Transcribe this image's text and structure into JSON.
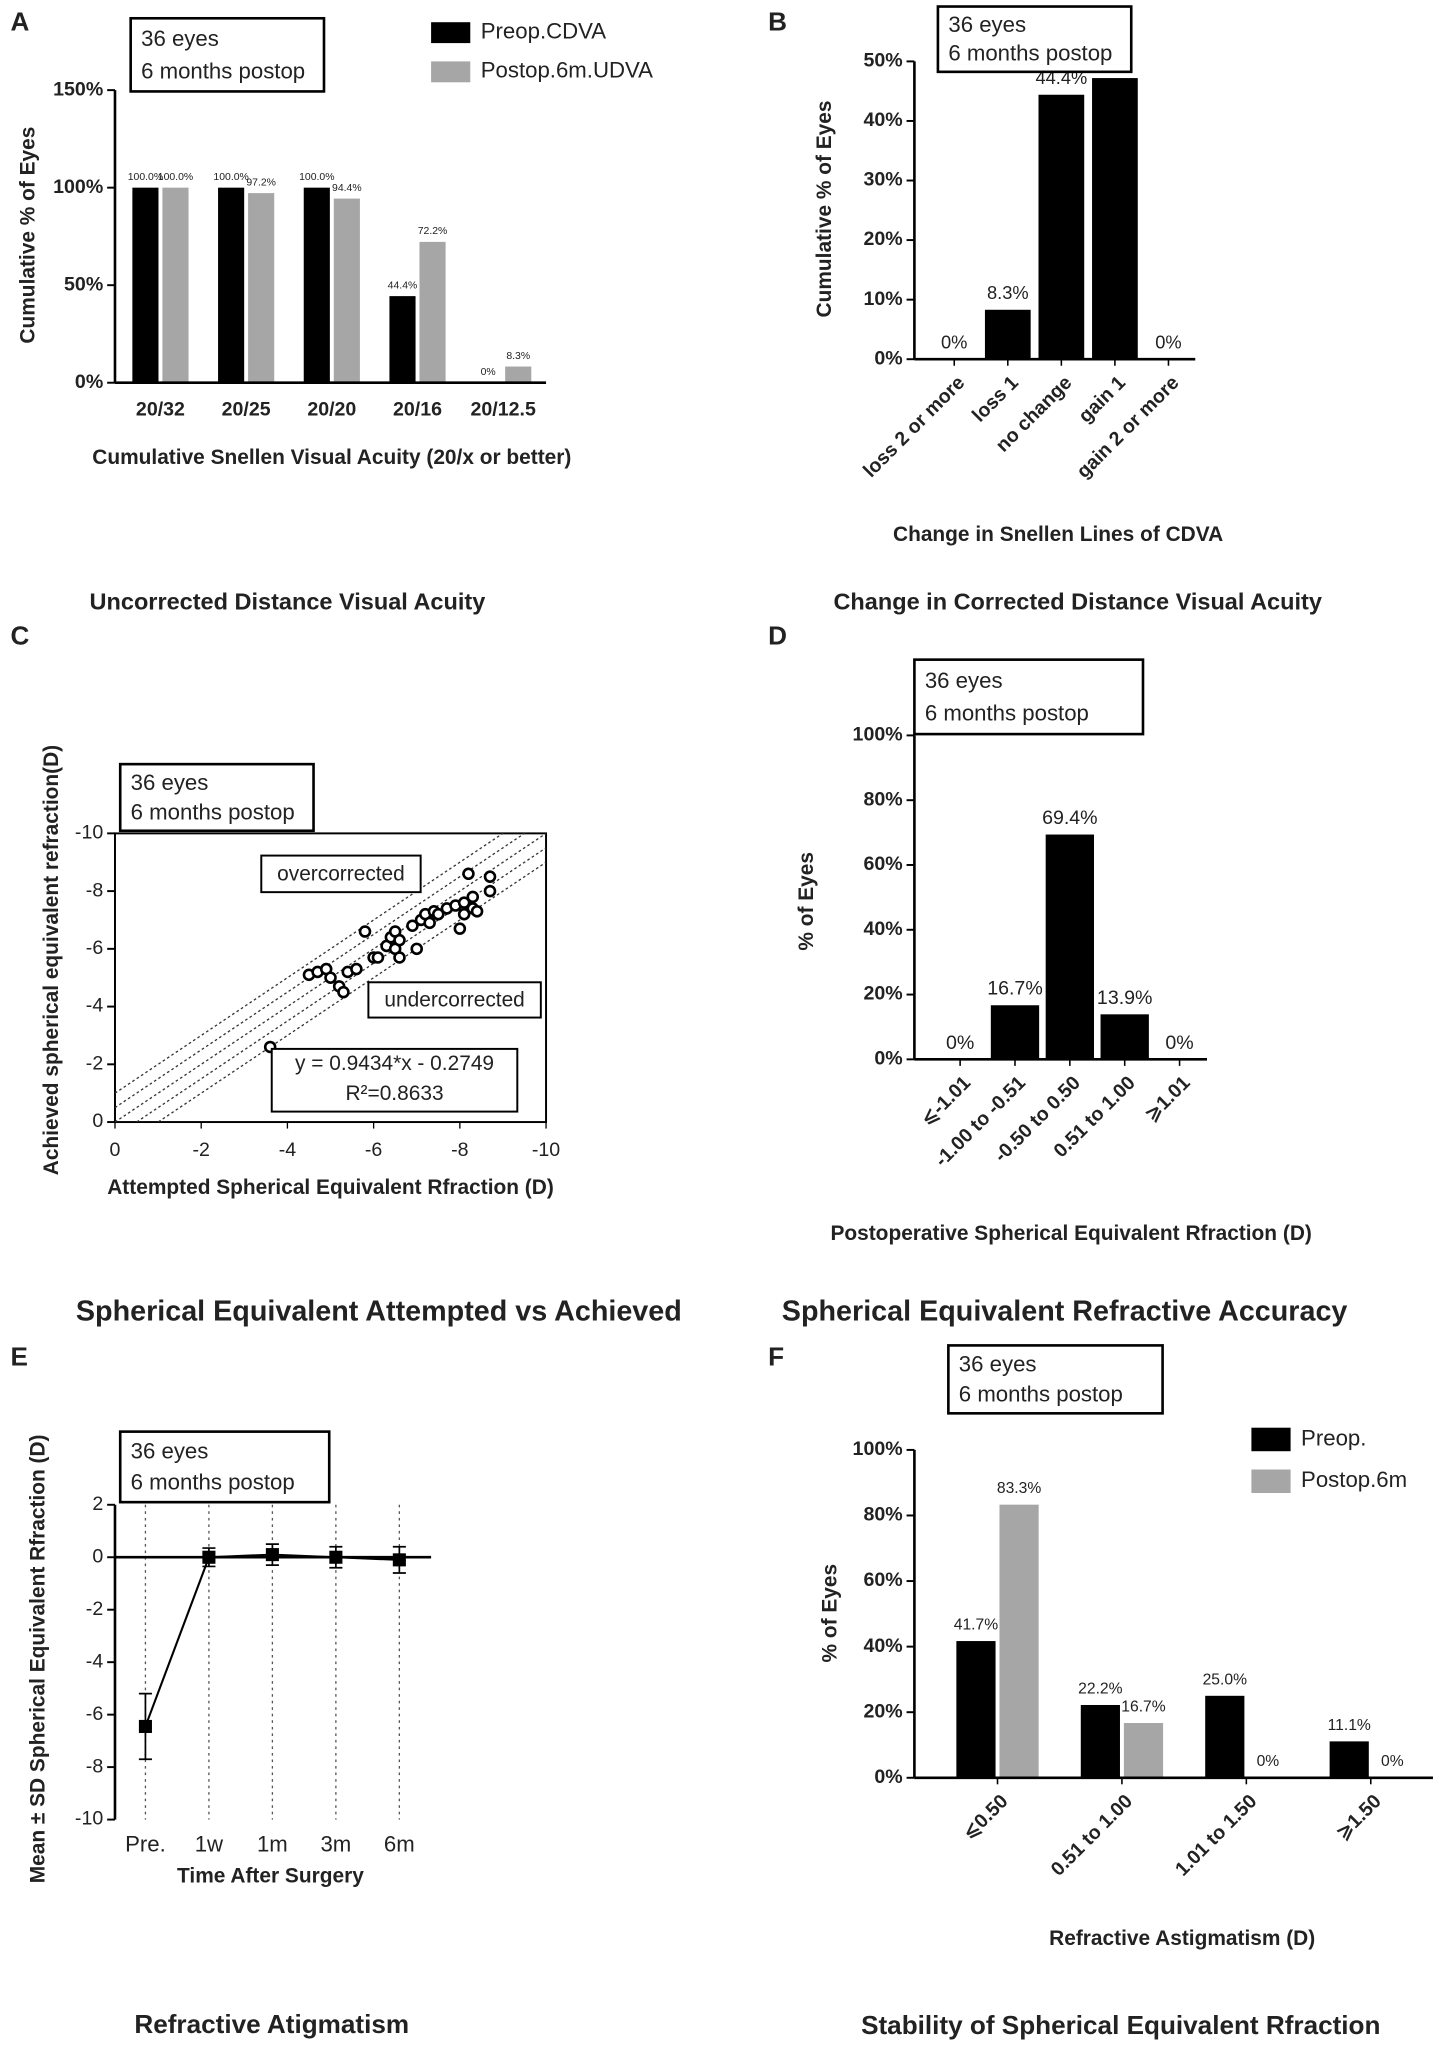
{
  "chart_data": [
    {
      "type": "bar",
      "panel": "A",
      "caption": "Uncorrected Distance Visual Acuity",
      "annotation": [
        "36 eyes",
        "6 months postop"
      ],
      "x_label": "Cumulative Snellen Visual Acuity (20/x or better)",
      "y_label": "Cumulative % of Eyes",
      "categories": [
        "20/32",
        "20/25",
        "20/20",
        "20/16",
        "20/12.5"
      ],
      "series": [
        {
          "name": "Preop.CDVA",
          "color": "#000000",
          "values": [
            100,
            100,
            100,
            44.4,
            0
          ],
          "value_labels": [
            "100.0%",
            "100.0%",
            "100.0%",
            "44.4%",
            "0%"
          ]
        },
        {
          "name": "Postop.6m.UDVA",
          "color": "#a6a6a6",
          "values": [
            100,
            97.2,
            94.4,
            72.2,
            8.3
          ],
          "value_labels": [
            "100.0%",
            "97.2%",
            "94.4%",
            "72.2%",
            "8.3%"
          ]
        }
      ],
      "ylim": [
        0,
        150
      ],
      "yticks": [
        {
          "value": 0,
          "label": "0%"
        },
        {
          "value": 50,
          "label": "50%"
        },
        {
          "value": 100,
          "label": "100%"
        },
        {
          "value": 150,
          "label": "150%"
        }
      ],
      "legend": "upper right"
    },
    {
      "type": "bar",
      "panel": "B",
      "caption": "Change in Corrected Distance Visual Acuity",
      "annotation": [
        "36 eyes",
        "6 months postop"
      ],
      "x_label": "Change in Snellen Lines of CDVA",
      "y_label": "Cumulative % of Eyes",
      "categories": [
        "loss 2 or more",
        "loss 1",
        "no change",
        "gain 1",
        "gain 2 or more"
      ],
      "values": [
        0,
        8.3,
        44.4,
        47.2,
        0
      ],
      "value_labels": [
        "0%",
        "8.3%",
        "44.4%",
        null,
        "0%"
      ],
      "color": "#000000",
      "ylim": [
        0,
        50
      ],
      "yticks": [
        {
          "value": 0,
          "label": "0%"
        },
        {
          "value": 10,
          "label": "10%"
        },
        {
          "value": 20,
          "label": "20%"
        },
        {
          "value": 30,
          "label": "30%"
        },
        {
          "value": 40,
          "label": "40%"
        },
        {
          "value": 50,
          "label": "50%"
        }
      ]
    },
    {
      "type": "scatter",
      "panel": "C",
      "caption": "Spherical Equivalent Attempted vs Achieved",
      "annotation": [
        "36 eyes",
        "6 months postop"
      ],
      "x_label": "Attempted Spherical Equivalent Rfraction (D)",
      "y_label": "Achieved spherical equivalent refraction(D)",
      "x": [
        -3.6,
        -4.5,
        -4.7,
        -4.9,
        -5.0,
        -5.2,
        -5.3,
        -5.4,
        -5.6,
        -5.8,
        -6.0,
        -6.1,
        -6.3,
        -6.4,
        -6.5,
        -6.5,
        -6.6,
        -6.6,
        -6.9,
        -7.0,
        -7.1,
        -7.2,
        -7.3,
        -7.4,
        -7.5,
        -7.7,
        -7.9,
        -8.0,
        -8.1,
        -8.1,
        -8.2,
        -8.3,
        -8.3,
        -8.4,
        -8.7,
        -8.7
      ],
      "values": [
        -2.6,
        -5.1,
        -5.2,
        -5.3,
        -5.0,
        -4.7,
        -4.5,
        -5.2,
        -5.3,
        -6.6,
        -5.7,
        -5.7,
        -6.1,
        -6.4,
        -6.6,
        -6.0,
        -5.7,
        -6.3,
        -6.8,
        -6.0,
        -7.0,
        -7.2,
        -6.9,
        -7.3,
        -7.2,
        -7.4,
        -7.5,
        -6.7,
        -7.2,
        -7.6,
        -8.6,
        -7.4,
        -7.8,
        -7.3,
        -8.0,
        -8.5
      ],
      "color": "#000000",
      "xlim": [
        0,
        -10
      ],
      "xticks": [
        0,
        -2,
        -4,
        -6,
        -8,
        -10
      ],
      "ylim": [
        0,
        -10
      ],
      "yticks": [
        0,
        -2,
        -4,
        -6,
        -8,
        -10
      ],
      "reference_lines": [
        -1,
        -0.5,
        0,
        0.5,
        1
      ],
      "annotations": [
        "overcorrected",
        "undercorrected"
      ],
      "fit_equation": "y = 0.9434*x - 0.2749",
      "r_squared": "R²=0.8633"
    },
    {
      "type": "bar",
      "panel": "D",
      "caption": "Spherical Equivalent Refractive Accuracy",
      "annotation": [
        "36 eyes",
        "6 months postop"
      ],
      "x_label": "Postoperative Spherical Equivalent Rfraction (D)",
      "y_label": "% of Eyes",
      "categories": [
        "⩽-1.01",
        "-1.00 to -0.51",
        "-0.50 to 0.50",
        "0.51 to 1.00",
        "⩾1.01"
      ],
      "values": [
        0,
        16.7,
        69.4,
        13.9,
        0
      ],
      "value_labels": [
        "0%",
        "16.7%",
        "69.4%",
        "13.9%",
        "0%"
      ],
      "color": "#000000",
      "ylim": [
        0,
        100
      ],
      "yticks": [
        {
          "value": 0,
          "label": "0%"
        },
        {
          "value": 20,
          "label": "20%"
        },
        {
          "value": 40,
          "label": "40%"
        },
        {
          "value": 60,
          "label": "60%"
        },
        {
          "value": 80,
          "label": "80%"
        },
        {
          "value": 100,
          "label": "100%"
        }
      ]
    },
    {
      "type": "line",
      "panel": "E",
      "caption": "Refractive Atigmatism",
      "annotation": [
        "36 eyes",
        "6 months postop"
      ],
      "x_label": "Time After Surgery",
      "y_label": "Mean ± SD Spherical Equivalent Rfraction (D)",
      "categories": [
        "Pre.",
        "1w",
        "1m",
        "3m",
        "6m"
      ],
      "values": [
        -6.45,
        0,
        0.1,
        0,
        -0.1
      ],
      "errors": [
        1.25,
        0.35,
        0.4,
        0.4,
        0.5
      ],
      "color": "#000000",
      "ylim": [
        -10,
        2
      ],
      "yticks": [
        -10,
        -8,
        -6,
        -4,
        -2,
        0,
        2
      ],
      "grid": "x"
    },
    {
      "type": "bar",
      "panel": "F",
      "caption": "Stability of Spherical Equivalent Rfraction",
      "annotation": [
        "36 eyes",
        "6 months postop"
      ],
      "x_label": "Refractive Astigmatism (D)",
      "y_label": "% of Eyes",
      "categories": [
        "⩽0.50",
        "0.51 to 1.00",
        "1.01 to 1.50",
        "⩾1.50"
      ],
      "series": [
        {
          "name": "Preop.",
          "color": "#000000",
          "values": [
            41.7,
            22.2,
            25.0,
            11.1
          ],
          "value_labels": [
            "41.7%",
            "22.2%",
            "25.0%",
            "11.1%"
          ]
        },
        {
          "name": "Postop.6m",
          "color": "#a6a6a6",
          "values": [
            83.3,
            16.7,
            0,
            0
          ],
          "value_labels": [
            "83.3%",
            "16.7%",
            "0%",
            "0%"
          ]
        }
      ],
      "ylim": [
        0,
        100
      ],
      "yticks": [
        {
          "value": 0,
          "label": "0%"
        },
        {
          "value": 20,
          "label": "20%"
        },
        {
          "value": 40,
          "label": "40%"
        },
        {
          "value": 60,
          "label": "60%"
        },
        {
          "value": 80,
          "label": "80%"
        },
        {
          "value": 100,
          "label": "100%"
        }
      ],
      "legend": "upper right"
    }
  ]
}
